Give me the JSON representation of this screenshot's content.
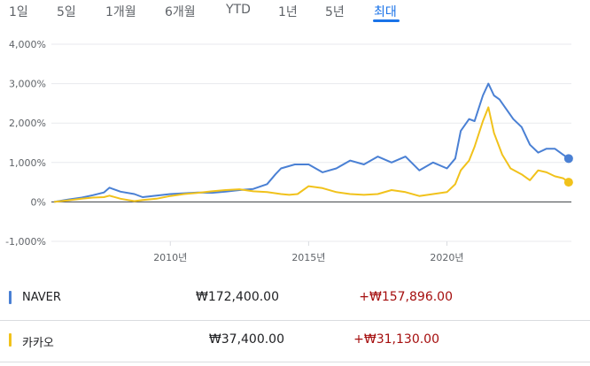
{
  "range_tabs": [
    "1일",
    "5일",
    "1개월",
    "6개월",
    "YTD",
    "1년",
    "5년",
    "최대"
  ],
  "active_tab": "최대",
  "stocks": [
    {
      "name": "NAVER",
      "price": "₩172,400.00",
      "change": "+₩157,896.00",
      "color": "#4a80d4"
    },
    {
      "name": "카카오",
      "price": "₩37,400.00",
      "change": "+₩31,130.00",
      "color": "#f1c21b"
    }
  ],
  "colors": {
    "change_positive": "#a50e0e",
    "active_tab": "#1a73e8",
    "zero_line": "#3c4043",
    "grid": "#e8eaed"
  },
  "chart_data": {
    "type": "line",
    "y_unit": "%",
    "ylim": [
      -1000,
      4000
    ],
    "yticks": [
      -1000,
      0,
      1000,
      2000,
      3000,
      4000
    ],
    "ytick_labels": [
      "-1,000%",
      "0%",
      "1,000%",
      "2,000%",
      "3,000%",
      "4,000%"
    ],
    "xlim": [
      2005.7,
      2024.5
    ],
    "xticks": [
      2010,
      2015,
      2020
    ],
    "xtick_labels": [
      "2010년",
      "2015년",
      "2020년"
    ],
    "grid": true,
    "series": [
      {
        "name": "NAVER",
        "color": "#4a80d4",
        "x": [
          2005.8,
          2006.3,
          2006.8,
          2007.2,
          2007.6,
          2007.8,
          2008.2,
          2008.7,
          2009.0,
          2009.5,
          2010.0,
          2010.5,
          2011.0,
          2011.5,
          2012.0,
          2012.5,
          2013.0,
          2013.5,
          2013.8,
          2014.0,
          2014.5,
          2015.0,
          2015.5,
          2016.0,
          2016.5,
          2017.0,
          2017.5,
          2018.0,
          2018.5,
          2019.0,
          2019.5,
          2020.0,
          2020.3,
          2020.5,
          2020.8,
          2021.0,
          2021.3,
          2021.5,
          2021.7,
          2021.9,
          2022.1,
          2022.4,
          2022.7,
          2023.0,
          2023.3,
          2023.6,
          2023.9,
          2024.2,
          2024.4
        ],
        "y": [
          0,
          60,
          110,
          170,
          240,
          360,
          260,
          200,
          120,
          160,
          200,
          220,
          240,
          230,
          260,
          300,
          330,
          450,
          700,
          850,
          950,
          950,
          750,
          850,
          1050,
          950,
          1150,
          1000,
          1150,
          800,
          1000,
          850,
          1100,
          1800,
          2100,
          2050,
          2700,
          3000,
          2700,
          2600,
          2400,
          2100,
          1900,
          1450,
          1250,
          1350,
          1350,
          1200,
          1100
        ]
      },
      {
        "name": "카카오",
        "color": "#f1c21b",
        "x": [
          2005.8,
          2006.3,
          2006.8,
          2007.2,
          2007.6,
          2007.8,
          2008.2,
          2008.7,
          2009.0,
          2009.5,
          2010.0,
          2010.5,
          2011.0,
          2011.5,
          2012.0,
          2012.5,
          2013.0,
          2013.5,
          2014.0,
          2014.3,
          2014.6,
          2015.0,
          2015.5,
          2016.0,
          2016.5,
          2017.0,
          2017.5,
          2018.0,
          2018.5,
          2019.0,
          2019.5,
          2020.0,
          2020.3,
          2020.5,
          2020.8,
          2021.0,
          2021.3,
          2021.5,
          2021.7,
          2022.0,
          2022.3,
          2022.7,
          2023.0,
          2023.3,
          2023.6,
          2023.9,
          2024.2,
          2024.4
        ],
        "y": [
          0,
          40,
          80,
          110,
          120,
          160,
          80,
          20,
          50,
          80,
          150,
          200,
          230,
          270,
          300,
          320,
          270,
          250,
          200,
          180,
          200,
          400,
          350,
          250,
          200,
          180,
          200,
          300,
          250,
          150,
          200,
          250,
          450,
          800,
          1050,
          1400,
          2050,
          2400,
          1750,
          1200,
          850,
          700,
          550,
          800,
          750,
          650,
          600,
          500
        ]
      }
    ]
  }
}
